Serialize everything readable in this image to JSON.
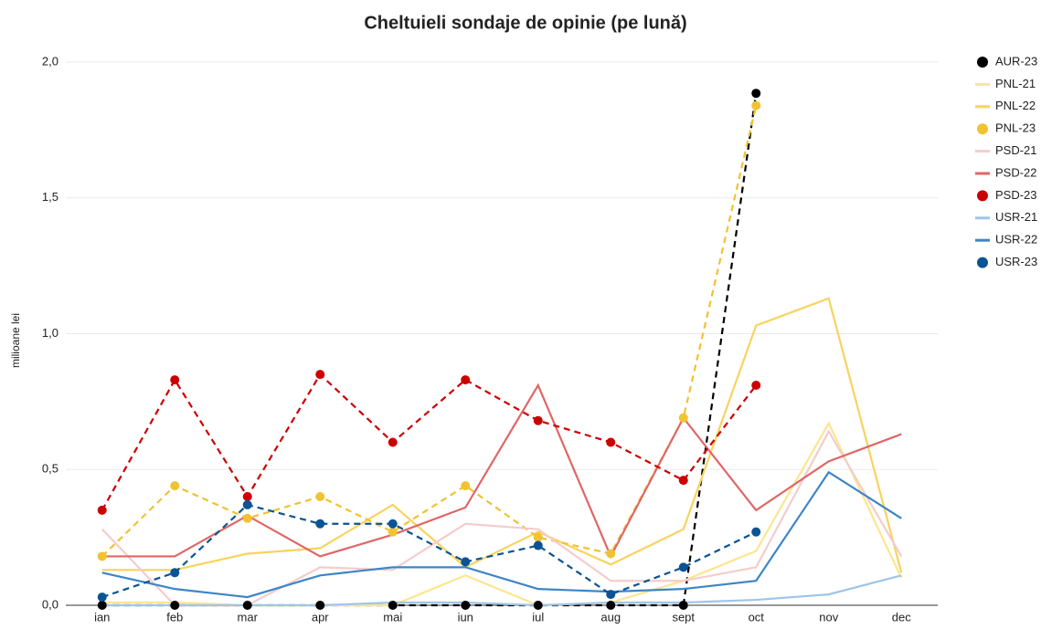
{
  "chart_data": {
    "type": "line",
    "title": "Cheltuieli sondaje de opinie (pe lună)",
    "y_label": "milioane lei",
    "categories": [
      "ian",
      "feb",
      "mar",
      "apr",
      "mai",
      "iun",
      "iul",
      "aug",
      "sept",
      "oct",
      "nov",
      "dec"
    ],
    "ylim": [
      0,
      2
    ],
    "yticks": [
      {
        "value": 0,
        "label": "0,0"
      },
      {
        "value": 0.5,
        "label": "0,5"
      },
      {
        "value": 1,
        "label": "1,0"
      },
      {
        "value": 1.5,
        "label": "1,5"
      },
      {
        "value": 2,
        "label": "2,0"
      }
    ],
    "grid": true,
    "legend": "right",
    "series": [
      {
        "name": "AUR-23",
        "color": "#000000",
        "dashed": true,
        "markers": true,
        "values": [
          0,
          0,
          0,
          0,
          0,
          0,
          0,
          0,
          0,
          1.885,
          null,
          null
        ]
      },
      {
        "name": "PNL-21",
        "color": "#fde58f",
        "dashed": false,
        "markers": false,
        "values": [
          0.01,
          0.01,
          0,
          0,
          0,
          0.11,
          0,
          0.01,
          0.09,
          0.2,
          0.67,
          0.1
        ]
      },
      {
        "name": "PNL-22",
        "color": "#f8d35e",
        "dashed": false,
        "markers": false,
        "values": [
          0.13,
          0.13,
          0.19,
          0.21,
          0.37,
          0.14,
          0.27,
          0.15,
          0.28,
          1.03,
          1.13,
          0.12
        ]
      },
      {
        "name": "PNL-23",
        "color": "#f1c232",
        "dashed": true,
        "markers": true,
        "values": [
          0.18,
          0.44,
          0.32,
          0.4,
          0.27,
          0.44,
          0.25,
          0.19,
          0.69,
          1.84,
          null,
          null
        ]
      },
      {
        "name": "PSD-21",
        "color": "#f4cccc",
        "dashed": false,
        "markers": false,
        "values": [
          0.28,
          0,
          0,
          0.14,
          0.13,
          0.3,
          0.28,
          0.09,
          0.09,
          0.14,
          0.64,
          0.18
        ]
      },
      {
        "name": "PSD-22",
        "color": "#e06666",
        "dashed": false,
        "markers": false,
        "values": [
          0.18,
          0.18,
          0.33,
          0.18,
          0.26,
          0.36,
          0.81,
          0.18,
          0.69,
          0.35,
          0.53,
          0.63
        ]
      },
      {
        "name": "PSD-23",
        "color": "#cc0000",
        "dashed": true,
        "markers": true,
        "values": [
          0.35,
          0.83,
          0.4,
          0.85,
          0.6,
          0.83,
          0.68,
          0.6,
          0.46,
          0.81,
          null,
          null
        ]
      },
      {
        "name": "USR-21",
        "color": "#9fc5e8",
        "dashed": false,
        "markers": false,
        "values": [
          0,
          0,
          0,
          0,
          0.01,
          0.01,
          0,
          0.01,
          0.01,
          0.02,
          0.04,
          0.11
        ]
      },
      {
        "name": "USR-22",
        "color": "#3d85c6",
        "dashed": false,
        "markers": false,
        "values": [
          0.12,
          0.06,
          0.03,
          0.11,
          0.14,
          0.14,
          0.06,
          0.05,
          0.06,
          0.09,
          0.49,
          0.32
        ]
      },
      {
        "name": "USR-23",
        "color": "#0b5394",
        "dashed": true,
        "markers": true,
        "values": [
          0.03,
          0.12,
          0.37,
          0.3,
          0.3,
          0.16,
          0.22,
          0.04,
          0.14,
          0.27,
          null,
          null
        ]
      }
    ]
  }
}
